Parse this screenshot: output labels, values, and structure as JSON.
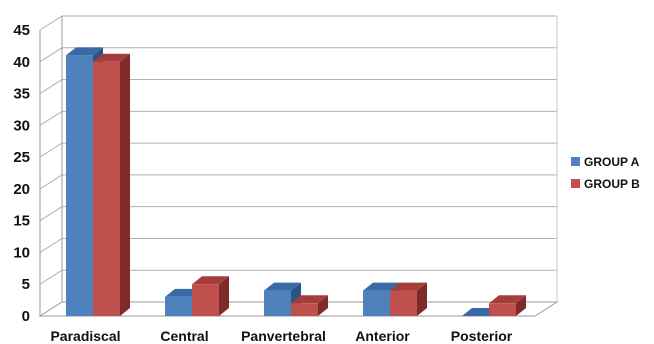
{
  "chart_data": {
    "type": "bar",
    "style": "3d-clustered-column",
    "categories": [
      "Paradiscal",
      "Central",
      "Panvertebral",
      "Anterior",
      "Posterior"
    ],
    "series": [
      {
        "name": "GROUP A",
        "values": [
          41,
          3,
          4,
          4,
          0
        ],
        "color": "#4F81BD",
        "top_color": "#3A6AA6",
        "side_color": "#2D5485"
      },
      {
        "name": "GROUP B",
        "values": [
          40,
          5,
          2,
          4,
          2
        ],
        "color": "#C0504D",
        "top_color": "#A33E3B",
        "side_color": "#7E2B29"
      }
    ],
    "ylim": [
      0,
      45
    ],
    "yticks": [
      0,
      5,
      10,
      15,
      20,
      25,
      30,
      35,
      40,
      45
    ],
    "grid": true,
    "legend": "right",
    "title": "",
    "xlabel": "",
    "ylabel": ""
  }
}
